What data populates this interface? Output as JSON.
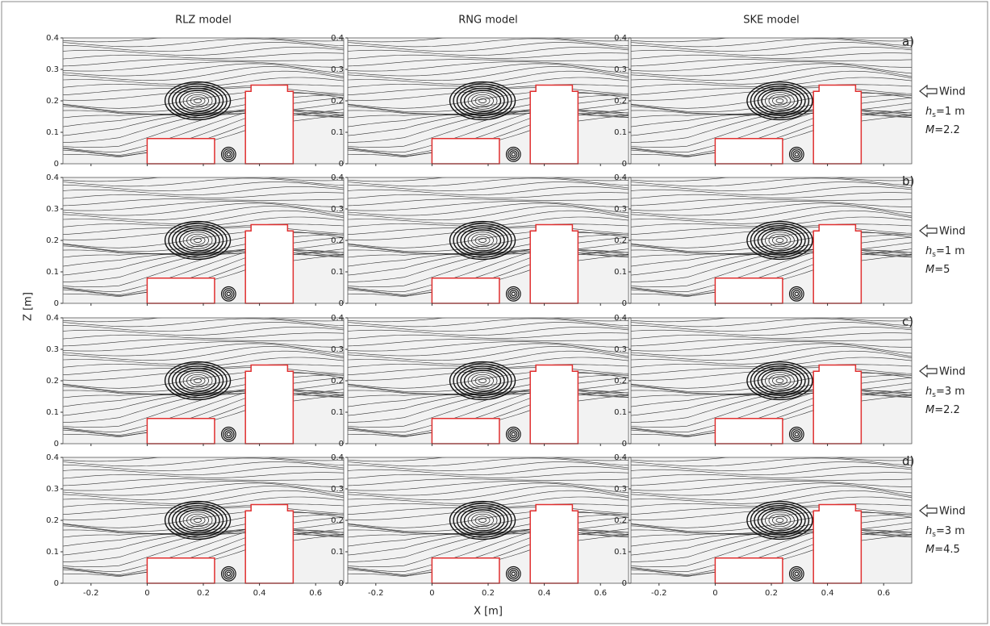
{
  "figure": {
    "columns": [
      "RLZ model",
      "RNG model",
      "SKE model"
    ],
    "xlabel": "X [m]",
    "ylabel": "Z [m]",
    "xlim": [
      -0.3,
      0.7
    ],
    "ylim": [
      0,
      0.4
    ],
    "xticks": [
      -0.2,
      0,
      0.2,
      0.4,
      0.6
    ],
    "yticks": [
      0,
      0.1,
      0.2,
      0.3,
      0.4
    ],
    "wind": "Wind",
    "hs_symbol": "h",
    "hs_subscript": "s",
    "m_symbol": "M",
    "rows": [
      {
        "letter": "a)",
        "hs_value": "=1 m",
        "m_value": "=2.2"
      },
      {
        "letter": "b)",
        "hs_value": "=1 m",
        "m_value": "=5"
      },
      {
        "letter": "c)",
        "hs_value": "=3 m",
        "m_value": "=2.2"
      },
      {
        "letter": "d)",
        "hs_value": "=3 m",
        "m_value": "=4.5"
      }
    ]
  }
}
